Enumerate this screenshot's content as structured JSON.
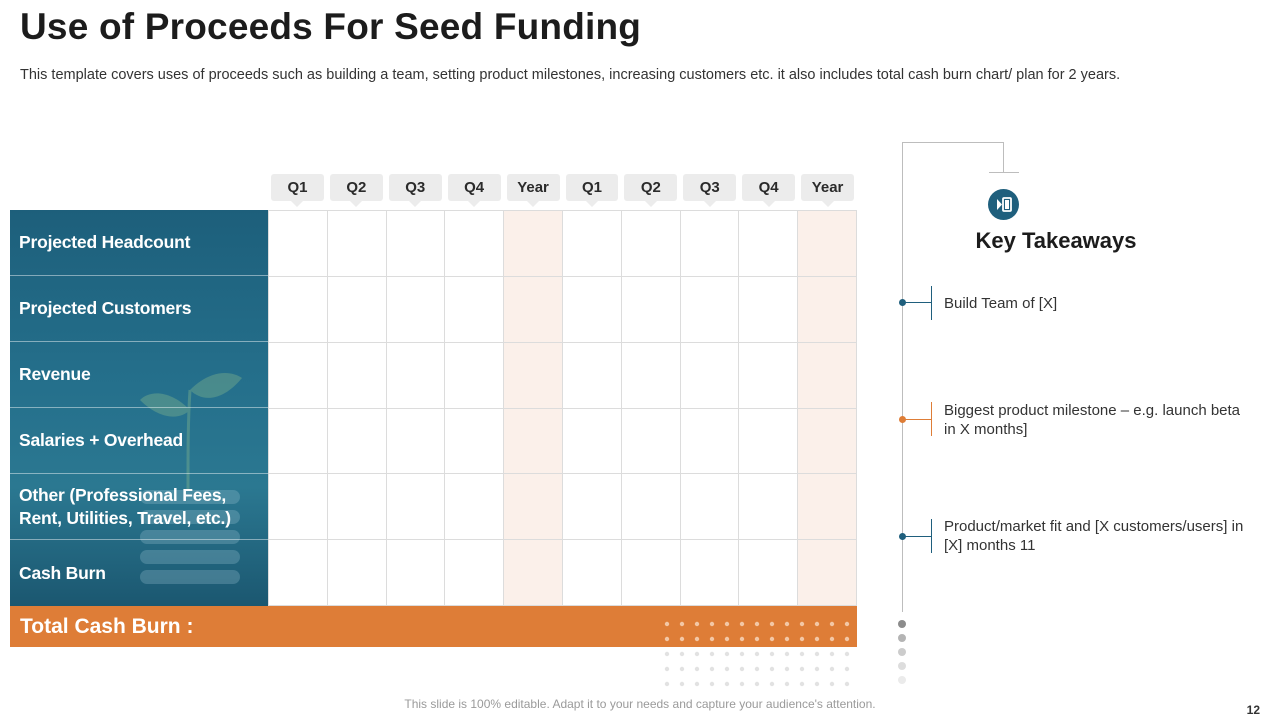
{
  "slide": {
    "title": "Use of Proceeds For Seed Funding",
    "subtitle": "This template covers uses of proceeds such as building a team, setting product milestones, increasing customers etc. it also includes total cash burn chart/ plan for 2 years.",
    "footer": "This slide is 100% editable. Adapt it to your needs and capture your audience's attention.",
    "page_number": "12"
  },
  "table": {
    "columns": [
      "Q1",
      "Q2",
      "Q3",
      "Q4",
      "Year",
      "Q1",
      "Q2",
      "Q3",
      "Q4",
      "Year"
    ],
    "rows": [
      "Projected Headcount",
      "Projected Customers",
      "Revenue",
      "Salaries + Overhead",
      "Other (Professional Fees, Rent, Utilities, Travel, etc.)",
      "Cash Burn"
    ],
    "total_label": "Total Cash Burn :"
  },
  "takeaways": {
    "title": "Key Takeaways",
    "icon": "pie-chart-icon",
    "items": [
      {
        "text": "Build Team of [X]",
        "color": "#1f5f7d"
      },
      {
        "text": "Biggest product milestone – e.g. launch beta in X months]",
        "color": "#de7d37"
      },
      {
        "text": "Product/market fit and [X customers/users] in [X] months  11",
        "color": "#1f5f7d"
      }
    ]
  },
  "colors": {
    "accent_blue": "#1f5f7d",
    "accent_orange": "#de7d37",
    "year_column_tint": "#fbf0ea"
  }
}
